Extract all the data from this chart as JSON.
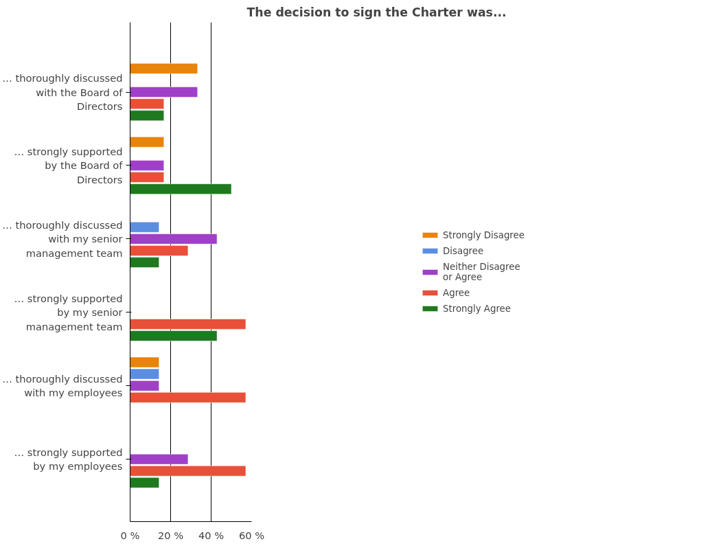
{
  "chart_data": {
    "type": "bar",
    "orientation": "horizontal",
    "title": "The decision to sign the Charter was...",
    "categories": [
      "… thoroughly discussed with the Board of Directors",
      "… strongly supported by the Board of Directors",
      "… thoroughly discussed with my senior management team",
      "… strongly supported by my senior management team",
      "… thoroughly discussed with my employees",
      "… strongly supported by my employees"
    ],
    "series": [
      {
        "name": "Strongly Disagree",
        "color": "#e8830c",
        "values": [
          33.3,
          16.7,
          null,
          null,
          14.3,
          null
        ]
      },
      {
        "name": "Disagree",
        "color": "#5b8ee0",
        "values": [
          null,
          null,
          14.3,
          null,
          14.3,
          null
        ]
      },
      {
        "name": "Neither Disagree or Agree",
        "color": "#a040c8",
        "values": [
          33.3,
          16.7,
          42.9,
          null,
          14.3,
          28.6
        ]
      },
      {
        "name": "Agree",
        "color": "#e8503a",
        "values": [
          16.7,
          16.7,
          28.6,
          57.1,
          57.1,
          57.1
        ]
      },
      {
        "name": "Strongly Agree",
        "color": "#1f7a1f",
        "values": [
          16.7,
          50,
          14.3,
          42.9,
          null,
          14.3
        ]
      }
    ],
    "xlim": [
      0,
      60
    ],
    "xticks": [
      {
        "value": 0,
        "label": "0 %"
      },
      {
        "value": 20,
        "label": "20 %"
      },
      {
        "value": 40,
        "label": "40 %"
      },
      {
        "value": 60,
        "label": "60 %"
      }
    ],
    "grid": "x",
    "legend": "right"
  }
}
